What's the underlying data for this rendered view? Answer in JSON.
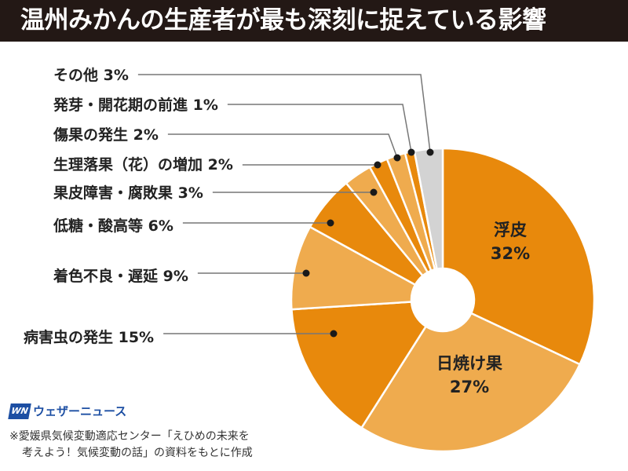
{
  "title": "温州みかんの生産者が最も深刻に捉えている影響",
  "chart_data": {
    "type": "pie",
    "donut": true,
    "title": "温州みかんの生産者が最も深刻に捉えている影響",
    "categories": [
      "浮皮",
      "日焼け果",
      "病害虫の発生",
      "着色不良・遅延",
      "低糖・酸高等",
      "果皮障害・腐敗果",
      "生理落果（花）の増加",
      "傷果の発生",
      "発芽・開花期の前進",
      "その他"
    ],
    "values": [
      32,
      27,
      15,
      9,
      6,
      3,
      2,
      2,
      1,
      3
    ],
    "unit": "%",
    "colors": [
      "#E8890C",
      "#EFAB4E",
      "#E8890C",
      "#EFAB4E",
      "#E8890C",
      "#EFAB4E",
      "#E8890C",
      "#EFAB4E",
      "#E8890C",
      "#D3D3D3"
    ],
    "labels": [
      "浮皮",
      "日焼け果",
      "病害虫の発生 15%",
      "着色不良・遅延 9%",
      "低糖・酸高等 6%",
      "果皮障害・腐敗果 3%",
      "生理落果（花）の増加 2%",
      "傷果の発生 2%",
      "発芽・開花期の前進 1%",
      "その他 3%"
    ],
    "inside_values": [
      "32%",
      "27%"
    ]
  },
  "logo": {
    "mark": "WN",
    "text": "ウェザーニュース"
  },
  "note": {
    "line1": "※愛媛県気候変動適応センター「えひめの未来を",
    "line2": "考えよう！気候変動の話」の資料をもとに作成"
  }
}
